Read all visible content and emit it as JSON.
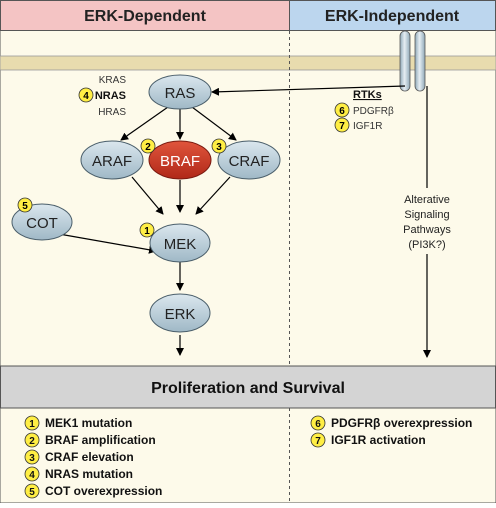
{
  "headers": {
    "left": "ERK-Dependent",
    "right": "ERK-Independent"
  },
  "colors": {
    "left_header": "#f4c4c4",
    "right_header": "#bcd6ee",
    "panel": "#fdfaea",
    "membrane": "#e8dcae",
    "node": "#b4cad6",
    "braf": "#cc3322",
    "badge": "#ffee44",
    "bottom_band": "#d4d4d4"
  },
  "ras_isoforms": {
    "kras": "KRAS",
    "nras": "NRAS",
    "hras": "HRAS"
  },
  "nodes": {
    "ras": "RAS",
    "araf": "ARAF",
    "braf": "BRAF",
    "craf": "CRAF",
    "cot": "COT",
    "mek": "MEK",
    "erk": "ERK"
  },
  "badges": {
    "mek": "1",
    "braf": "2",
    "craf": "3",
    "nras": "4",
    "cot": "5",
    "pdgfrb": "6",
    "igf1r": "7"
  },
  "rtks": {
    "title": "RTKs",
    "pdgfrb": "PDGFRβ",
    "igf1r": "IGF1R"
  },
  "alt_pathway": [
    "Alterative",
    "Signaling",
    "Pathways",
    "(PI3K?)"
  ],
  "outcome": "Proliferation and Survival",
  "legend_left": [
    {
      "num": "1",
      "text": "MEK1 mutation"
    },
    {
      "num": "2",
      "text": "BRAF amplification"
    },
    {
      "num": "3",
      "text": "CRAF elevation"
    },
    {
      "num": "4",
      "text": "NRAS mutation"
    },
    {
      "num": "5",
      "text": "COT overexpression"
    }
  ],
  "legend_right": [
    {
      "num": "6",
      "text": "PDGFRβ overexpression"
    },
    {
      "num": "7",
      "text": "IGF1R activation"
    }
  ]
}
